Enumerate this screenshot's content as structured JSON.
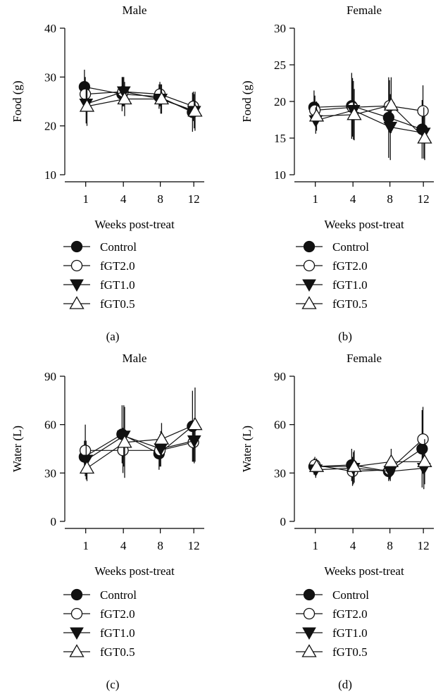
{
  "chart_data": [
    {
      "type": "line",
      "title": "Male",
      "panel_label": "(a)",
      "xlabel": "Weeks post-treat",
      "ylabel": "Food (g)",
      "categories": [
        "1",
        "4",
        "8",
        "12"
      ],
      "ylim": [
        10,
        40
      ],
      "yticks": [
        10,
        20,
        30,
        40
      ],
      "grid": false,
      "legend": "below",
      "series": [
        {
          "name": "Control",
          "marker": "filled-circle",
          "values": [
            28,
            26.5,
            26,
            22.8
          ],
          "err": [
            3.5,
            3.5,
            2.5,
            4
          ]
        },
        {
          "name": "fGT2.0",
          "marker": "open-circle",
          "values": [
            26.5,
            27,
            26.5,
            24
          ],
          "err": [
            3.5,
            3,
            2.5,
            3
          ]
        },
        {
          "name": "fGT1.0",
          "marker": "filled-triangle-down",
          "values": [
            24.5,
            27,
            25.5,
            23
          ],
          "err": [
            4,
            3,
            3,
            3.5
          ]
        },
        {
          "name": "fGT0.5",
          "marker": "open-triangle-up",
          "values": [
            24,
            25.5,
            25.5,
            23
          ],
          "err": [
            4,
            3.5,
            3,
            4
          ]
        }
      ]
    },
    {
      "type": "line",
      "title": "Female",
      "panel_label": "(b)",
      "xlabel": "Weeks post-treat",
      "ylabel": "Food (g)",
      "categories": [
        "1",
        "4",
        "8",
        "12"
      ],
      "ylim": [
        10,
        30
      ],
      "yticks": [
        10,
        15,
        20,
        25,
        30
      ],
      "grid": false,
      "legend": "below",
      "series": [
        {
          "name": "Control",
          "marker": "filled-circle",
          "values": [
            19.2,
            19.4,
            17.8,
            16.2
          ],
          "err": [
            2.3,
            4.5,
            5.5,
            4
          ]
        },
        {
          "name": "fGT2.0",
          "marker": "open-circle",
          "values": [
            18.8,
            19.2,
            19.4,
            18.7
          ],
          "err": [
            2,
            4,
            3.5,
            3.5
          ]
        },
        {
          "name": "fGT1.0",
          "marker": "filled-triangle-down",
          "values": [
            17.4,
            18.8,
            16.5,
            15.7
          ],
          "err": [
            1.8,
            4,
            4.5,
            3.5
          ]
        },
        {
          "name": "fGT0.5",
          "marker": "open-triangle-up",
          "values": [
            18,
            18.2,
            19.5,
            15
          ],
          "err": [
            2,
            3.5,
            3.8,
            3
          ]
        }
      ]
    },
    {
      "type": "line",
      "title": "Male",
      "panel_label": "(c)",
      "xlabel": "Weeks post-treat",
      "ylabel": "Water (L)",
      "categories": [
        "1",
        "4",
        "8",
        "12"
      ],
      "ylim": [
        0,
        90
      ],
      "yticks": [
        0,
        30,
        60,
        90
      ],
      "grid": false,
      "legend": "below",
      "series": [
        {
          "name": "Control",
          "marker": "filled-circle",
          "values": [
            40,
            54,
            42,
            59
          ],
          "err": [
            10,
            18,
            10,
            22
          ]
        },
        {
          "name": "fGT2.0",
          "marker": "open-circle",
          "values": [
            44,
            44,
            44,
            49
          ],
          "err": [
            16,
            14,
            10,
            12
          ]
        },
        {
          "name": "fGT1.0",
          "marker": "filled-triangle-down",
          "values": [
            38,
            53,
            45,
            50
          ],
          "err": [
            12,
            19,
            11,
            14
          ]
        },
        {
          "name": "fGT0.5",
          "marker": "open-triangle-up",
          "values": [
            33,
            49,
            51,
            60
          ],
          "err": [
            8,
            22,
            10,
            23
          ]
        }
      ]
    },
    {
      "type": "line",
      "title": "Female",
      "panel_label": "(d)",
      "xlabel": "Weeks post-treat",
      "ylabel": "Water (L)",
      "categories": [
        "1",
        "4",
        "8",
        "12"
      ],
      "ylim": [
        0,
        90
      ],
      "yticks": [
        0,
        30,
        60,
        90
      ],
      "grid": false,
      "legend": "below",
      "series": [
        {
          "name": "Control",
          "marker": "filled-circle",
          "values": [
            34,
            35,
            31,
            45
          ],
          "err": [
            5,
            10,
            6,
            24
          ]
        },
        {
          "name": "fGT2.0",
          "marker": "open-circle",
          "values": [
            35,
            31,
            32,
            51
          ],
          "err": [
            5,
            9,
            6,
            20
          ]
        },
        {
          "name": "fGT1.0",
          "marker": "filled-triangle-down",
          "values": [
            32,
            33,
            31,
            33
          ],
          "err": [
            5,
            10,
            6,
            13
          ]
        },
        {
          "name": "fGT0.5",
          "marker": "open-triangle-up",
          "values": [
            34,
            34,
            37,
            37
          ],
          "err": [
            5,
            10,
            8,
            14
          ]
        }
      ]
    }
  ]
}
